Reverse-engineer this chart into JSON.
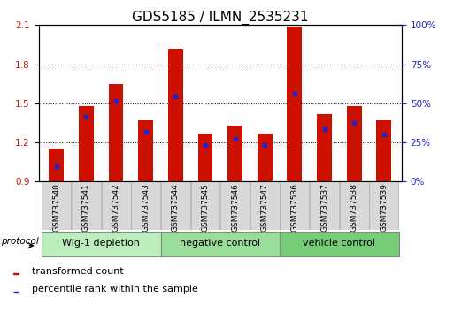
{
  "title": "GDS5185 / ILMN_2535231",
  "samples": [
    "GSM737540",
    "GSM737541",
    "GSM737542",
    "GSM737543",
    "GSM737544",
    "GSM737545",
    "GSM737546",
    "GSM737547",
    "GSM737536",
    "GSM737537",
    "GSM737538",
    "GSM737539"
  ],
  "bar_tops": [
    1.15,
    1.48,
    1.65,
    1.37,
    1.92,
    1.27,
    1.33,
    1.27,
    2.09,
    1.42,
    1.48,
    1.37
  ],
  "percentile_values": [
    1.02,
    1.4,
    1.52,
    1.28,
    1.55,
    1.18,
    1.23,
    1.18,
    1.57,
    1.3,
    1.35,
    1.26
  ],
  "groups": [
    {
      "label": "Wig-1 depletion",
      "start": 0,
      "end": 4,
      "color": "#bbeebb"
    },
    {
      "label": "negative control",
      "start": 4,
      "end": 8,
      "color": "#99dd99"
    },
    {
      "label": "vehicle control",
      "start": 8,
      "end": 12,
      "color": "#77cc77"
    }
  ],
  "ylim": [
    0.9,
    2.1
  ],
  "yticks_left": [
    0.9,
    1.2,
    1.5,
    1.8,
    2.1
  ],
  "yticks_right_pct": [
    0,
    25,
    50,
    75,
    100
  ],
  "bar_color": "#cc1100",
  "percentile_color": "#2222cc",
  "sample_box_color": "#d8d8d8",
  "grid_color": "#000000",
  "title_fontsize": 11,
  "tick_fontsize": 7.5,
  "sample_fontsize": 6.5,
  "group_fontsize": 8,
  "legend_fontsize": 8
}
